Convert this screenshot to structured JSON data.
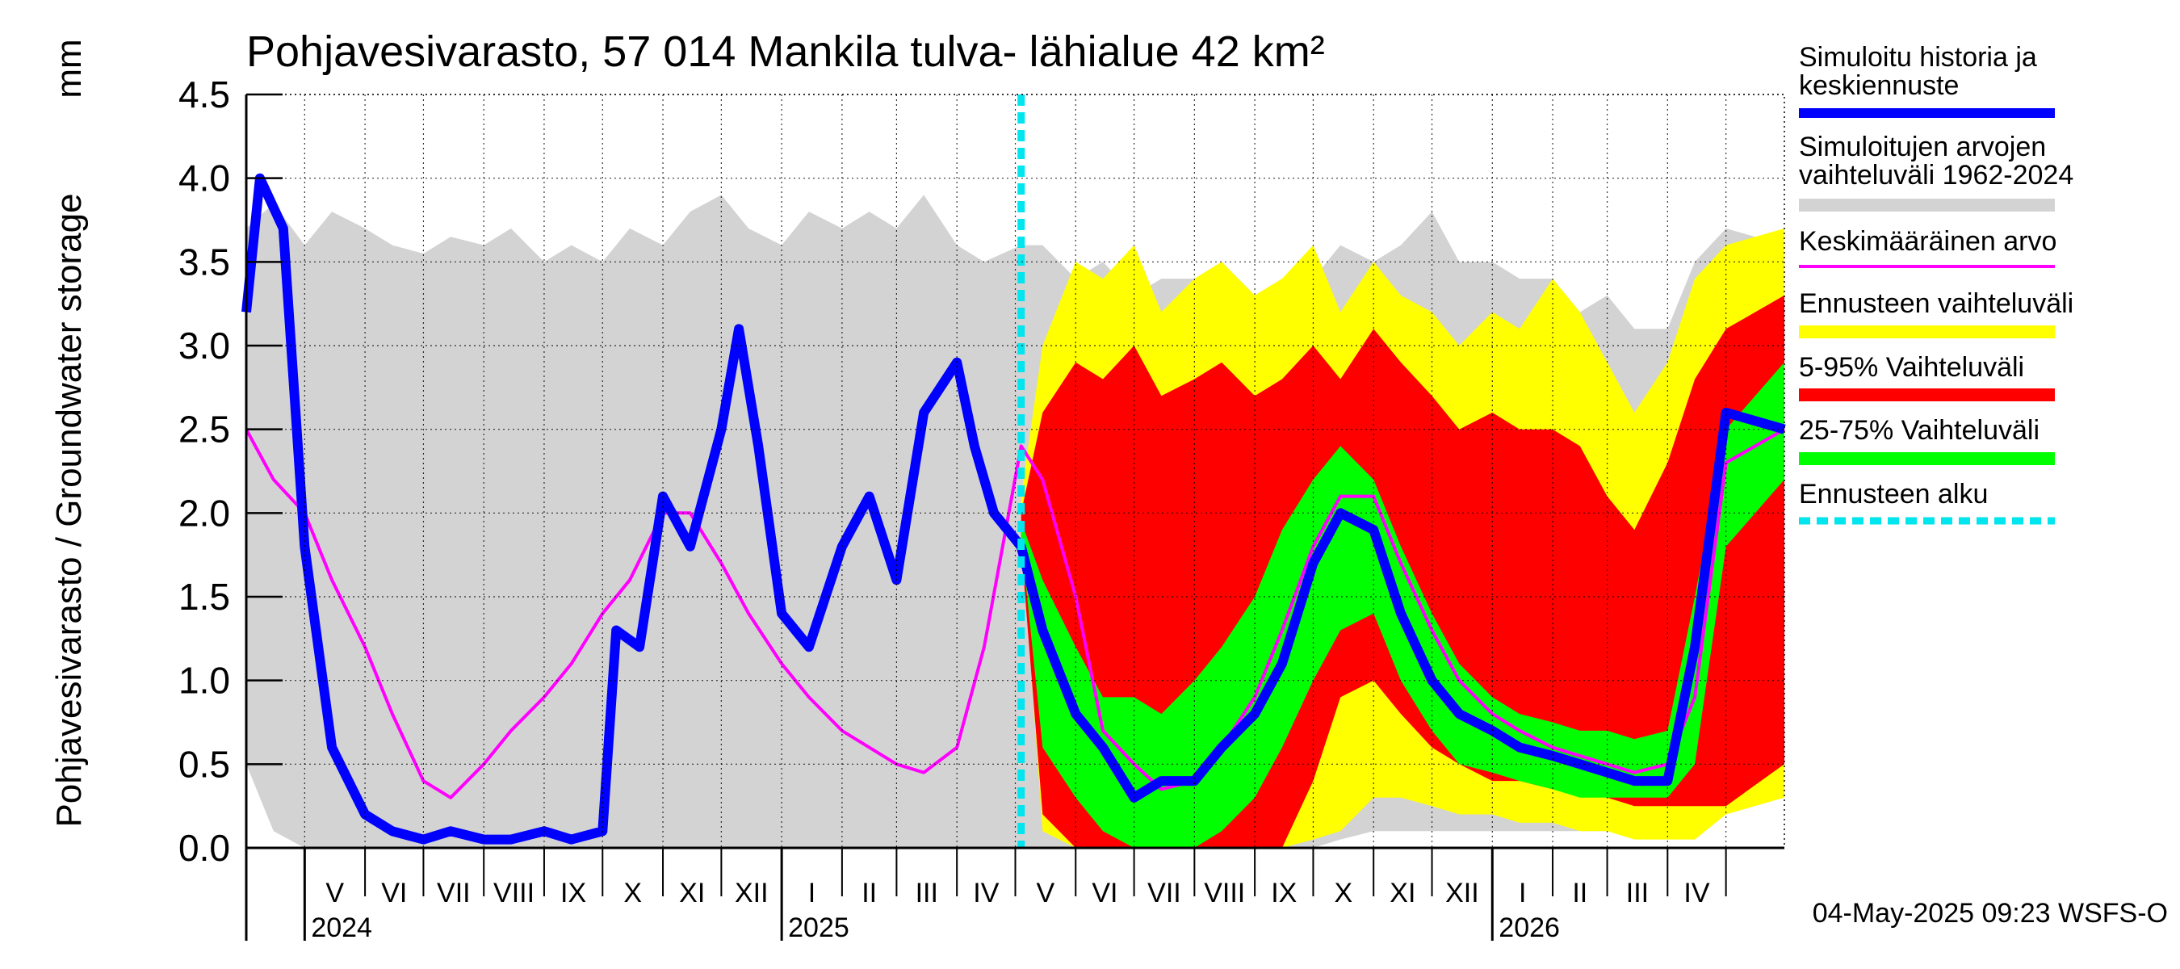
{
  "chart_data": {
    "type": "area",
    "title": "Pohjavesivarasto, 57 014 Mankila tulva- lähialue 42 km²",
    "ylabel": "Pohjavesivarasto / Groundwater storage",
    "yunit": "mm",
    "ylim": [
      0.0,
      4.5
    ],
    "yticks": [
      "0.0",
      "0.5",
      "1.0",
      "1.5",
      "2.0",
      "2.5",
      "3.0",
      "3.5",
      "4.0",
      "4.5"
    ],
    "xlim": [
      "2024-04-01",
      "2026-05-31"
    ],
    "forecast_start": "2025-05-04",
    "grid": true,
    "legend_position": "right",
    "footer": "04-May-2025 09:23 WSFS-O",
    "colors": {
      "history": "#0000ff",
      "range": "#d3d3d3",
      "mean": "#ff00ff",
      "forecast_range": "#ffff00",
      "p5_95": "#ff0000",
      "p25_75": "#00ff00",
      "forecast_start": "#00e5ee"
    },
    "months": [
      {
        "label": "V",
        "start": "2024-05-01"
      },
      {
        "label": "VI",
        "start": "2024-06-01"
      },
      {
        "label": "VII",
        "start": "2024-07-01"
      },
      {
        "label": "VIII",
        "start": "2024-08-01"
      },
      {
        "label": "IX",
        "start": "2024-09-01"
      },
      {
        "label": "X",
        "start": "2024-10-01"
      },
      {
        "label": "XI",
        "start": "2024-11-01"
      },
      {
        "label": "XII",
        "start": "2024-12-01"
      },
      {
        "label": "I",
        "start": "2025-01-01"
      },
      {
        "label": "II",
        "start": "2025-02-01"
      },
      {
        "label": "III",
        "start": "2025-03-01"
      },
      {
        "label": "IV",
        "start": "2025-04-01"
      },
      {
        "label": "V",
        "start": "2025-05-01"
      },
      {
        "label": "VI",
        "start": "2025-06-01"
      },
      {
        "label": "VII",
        "start": "2025-07-01"
      },
      {
        "label": "VIII",
        "start": "2025-08-01"
      },
      {
        "label": "IX",
        "start": "2025-09-01"
      },
      {
        "label": "X",
        "start": "2025-10-01"
      },
      {
        "label": "XI",
        "start": "2025-11-01"
      },
      {
        "label": "XII",
        "start": "2025-12-01"
      },
      {
        "label": "I",
        "start": "2026-01-01"
      },
      {
        "label": "II",
        "start": "2026-02-01"
      },
      {
        "label": "III",
        "start": "2026-03-01"
      },
      {
        "label": "IV",
        "start": "2026-04-01"
      },
      {
        "label": "",
        "start": "2026-05-01"
      }
    ],
    "years": [
      {
        "label": "2024",
        "date": "2024-05-01"
      },
      {
        "label": "2025",
        "date": "2025-01-01"
      },
      {
        "label": "2026",
        "date": "2026-01-01"
      }
    ],
    "legend": [
      {
        "key": "history",
        "lines": [
          "Simuloitu historia ja",
          "keskiennuste"
        ]
      },
      {
        "key": "range",
        "lines": [
          "Simuloitujen arvojen",
          "vaihteluväli 1962-2024"
        ]
      },
      {
        "key": "mean",
        "lines": [
          "Keskimääräinen arvo"
        ]
      },
      {
        "key": "forecast_range",
        "lines": [
          "Ennusteen vaihteluväli"
        ]
      },
      {
        "key": "p5_95",
        "lines": [
          "5-95% Vaihteluväli"
        ]
      },
      {
        "key": "p25_75",
        "lines": [
          "25-75% Vaihteluväli"
        ]
      },
      {
        "key": "forecast_start",
        "lines": [
          "Ennusteen alku"
        ]
      }
    ],
    "series": [
      {
        "name": "Simuloitujen arvojen vaihteluväli 1962-2024",
        "x": [
          "2024-04-01",
          "2024-04-15",
          "2024-05-01",
          "2024-05-15",
          "2024-06-01",
          "2024-06-15",
          "2024-07-01",
          "2024-07-15",
          "2024-08-01",
          "2024-08-15",
          "2024-09-01",
          "2024-09-15",
          "2024-10-01",
          "2024-10-15",
          "2024-11-01",
          "2024-11-15",
          "2024-12-01",
          "2024-12-15",
          "2025-01-01",
          "2025-01-15",
          "2025-02-01",
          "2025-02-15",
          "2025-03-01",
          "2025-03-15",
          "2025-04-01",
          "2025-04-15",
          "2025-05-04",
          "2025-05-15",
          "2025-06-01",
          "2025-06-15",
          "2025-07-01",
          "2025-07-15",
          "2025-08-01",
          "2025-08-15",
          "2025-09-01",
          "2025-09-15",
          "2025-10-01",
          "2025-10-15",
          "2025-11-01",
          "2025-11-15",
          "2025-12-01",
          "2025-12-15",
          "2026-01-01",
          "2026-01-15",
          "2026-02-01",
          "2026-02-15",
          "2026-03-01",
          "2026-03-15",
          "2026-04-01",
          "2026-04-15",
          "2026-05-01",
          "2026-05-31"
        ],
        "upper": [
          3.7,
          3.85,
          3.6,
          3.8,
          3.7,
          3.6,
          3.55,
          3.65,
          3.6,
          3.7,
          3.5,
          3.6,
          3.5,
          3.7,
          3.6,
          3.8,
          3.9,
          3.7,
          3.6,
          3.8,
          3.7,
          3.8,
          3.7,
          3.9,
          3.6,
          3.5,
          3.6,
          3.6,
          3.4,
          3.5,
          3.3,
          3.4,
          3.4,
          3.5,
          3.3,
          3.4,
          3.4,
          3.6,
          3.5,
          3.6,
          3.8,
          3.5,
          3.5,
          3.4,
          3.4,
          3.2,
          3.3,
          3.1,
          3.1,
          3.5,
          3.7,
          3.6
        ],
        "lower": [
          0.5,
          0.1,
          0.0,
          0.0,
          0.0,
          0.0,
          0.0,
          0.0,
          0.0,
          0.0,
          0.0,
          0.0,
          0.0,
          0.0,
          0.0,
          0.0,
          0.0,
          0.0,
          0.0,
          0.0,
          0.0,
          0.0,
          0.0,
          0.0,
          0.0,
          0.0,
          0.0,
          0.0,
          0.0,
          0.0,
          0.0,
          0.0,
          0.0,
          0.0,
          0.0,
          0.0,
          0.0,
          0.05,
          0.1,
          0.1,
          0.1,
          0.1,
          0.1,
          0.1,
          0.1,
          0.1,
          0.1,
          0.15,
          0.2,
          0.25,
          0.3,
          0.5
        ]
      },
      {
        "name": "Ennusteen vaihteluväli",
        "x": [
          "2025-05-04",
          "2025-05-15",
          "2025-06-01",
          "2025-06-15",
          "2025-07-01",
          "2025-07-15",
          "2025-08-01",
          "2025-08-15",
          "2025-09-01",
          "2025-09-15",
          "2025-10-01",
          "2025-10-15",
          "2025-11-01",
          "2025-11-15",
          "2025-12-01",
          "2025-12-15",
          "2026-01-01",
          "2026-01-15",
          "2026-02-01",
          "2026-02-15",
          "2026-03-01",
          "2026-03-15",
          "2026-04-01",
          "2026-04-15",
          "2026-05-01",
          "2026-05-31"
        ],
        "upper": [
          2.1,
          3.0,
          3.5,
          3.4,
          3.6,
          3.2,
          3.4,
          3.5,
          3.3,
          3.4,
          3.6,
          3.2,
          3.5,
          3.3,
          3.2,
          3.0,
          3.2,
          3.1,
          3.4,
          3.2,
          2.9,
          2.6,
          2.9,
          3.4,
          3.6,
          3.7
        ],
        "lower": [
          1.9,
          0.1,
          0.0,
          0.0,
          0.0,
          0.0,
          0.0,
          0.0,
          0.0,
          0.0,
          0.05,
          0.1,
          0.3,
          0.3,
          0.25,
          0.2,
          0.2,
          0.15,
          0.15,
          0.1,
          0.1,
          0.05,
          0.05,
          0.05,
          0.2,
          0.3
        ]
      },
      {
        "name": "5-95% Vaihteluväli",
        "x": [
          "2025-05-04",
          "2025-05-15",
          "2025-06-01",
          "2025-06-15",
          "2025-07-01",
          "2025-07-15",
          "2025-08-01",
          "2025-08-15",
          "2025-09-01",
          "2025-09-15",
          "2025-10-01",
          "2025-10-15",
          "2025-11-01",
          "2025-11-15",
          "2025-12-01",
          "2025-12-15",
          "2026-01-01",
          "2026-01-15",
          "2026-02-01",
          "2026-02-15",
          "2026-03-01",
          "2026-03-15",
          "2026-04-01",
          "2026-04-15",
          "2026-05-01",
          "2026-05-31"
        ],
        "upper": [
          2.0,
          2.6,
          2.9,
          2.8,
          3.0,
          2.7,
          2.8,
          2.9,
          2.7,
          2.8,
          3.0,
          2.8,
          3.1,
          2.9,
          2.7,
          2.5,
          2.6,
          2.5,
          2.5,
          2.4,
          2.1,
          1.9,
          2.3,
          2.8,
          3.1,
          3.3
        ],
        "lower": [
          1.8,
          0.2,
          0.0,
          0.0,
          0.0,
          0.0,
          0.0,
          0.0,
          0.0,
          0.0,
          0.4,
          0.9,
          1.0,
          0.8,
          0.6,
          0.5,
          0.4,
          0.4,
          0.35,
          0.35,
          0.3,
          0.25,
          0.25,
          0.25,
          0.25,
          0.5
        ]
      },
      {
        "name": "25-75% Vaihteluväli",
        "x": [
          "2025-05-04",
          "2025-05-15",
          "2025-06-01",
          "2025-06-15",
          "2025-07-01",
          "2025-07-15",
          "2025-08-01",
          "2025-08-15",
          "2025-09-01",
          "2025-09-15",
          "2025-10-01",
          "2025-10-15",
          "2025-11-01",
          "2025-11-15",
          "2025-12-01",
          "2025-12-15",
          "2026-01-01",
          "2026-01-15",
          "2026-02-01",
          "2026-02-15",
          "2026-03-01",
          "2026-03-15",
          "2026-04-01",
          "2026-04-15",
          "2026-05-01",
          "2026-05-31"
        ],
        "upper": [
          1.95,
          1.6,
          1.2,
          0.9,
          0.9,
          0.8,
          1.0,
          1.2,
          1.5,
          1.9,
          2.2,
          2.4,
          2.2,
          1.8,
          1.4,
          1.1,
          0.9,
          0.8,
          0.75,
          0.7,
          0.7,
          0.65,
          0.7,
          1.5,
          2.5,
          2.9
        ],
        "lower": [
          1.85,
          0.6,
          0.3,
          0.1,
          0.0,
          0.0,
          0.0,
          0.1,
          0.3,
          0.6,
          1.0,
          1.3,
          1.4,
          1.0,
          0.7,
          0.5,
          0.45,
          0.4,
          0.35,
          0.3,
          0.3,
          0.3,
          0.3,
          0.5,
          1.8,
          2.2
        ]
      },
      {
        "name": "Keskimääräinen arvo",
        "x": [
          "2024-04-01",
          "2024-04-15",
          "2024-05-01",
          "2024-05-15",
          "2024-06-01",
          "2024-06-15",
          "2024-07-01",
          "2024-07-15",
          "2024-08-01",
          "2024-08-15",
          "2024-09-01",
          "2024-09-15",
          "2024-10-01",
          "2024-10-15",
          "2024-11-01",
          "2024-11-15",
          "2024-12-01",
          "2024-12-15",
          "2025-01-01",
          "2025-01-15",
          "2025-02-01",
          "2025-02-15",
          "2025-03-01",
          "2025-03-15",
          "2025-04-01",
          "2025-04-15",
          "2025-05-04",
          "2025-05-15",
          "2025-06-01",
          "2025-06-15",
          "2025-07-01",
          "2025-07-15",
          "2025-08-01",
          "2025-08-15",
          "2025-09-01",
          "2025-09-15",
          "2025-10-01",
          "2025-10-15",
          "2025-11-01",
          "2025-11-15",
          "2025-12-01",
          "2025-12-15",
          "2026-01-01",
          "2026-01-15",
          "2026-02-01",
          "2026-02-15",
          "2026-03-01",
          "2026-03-15",
          "2026-04-01",
          "2026-04-15",
          "2026-05-01",
          "2026-05-31"
        ],
        "values": [
          2.5,
          2.2,
          2.0,
          1.6,
          1.2,
          0.8,
          0.4,
          0.3,
          0.5,
          0.7,
          0.9,
          1.1,
          1.4,
          1.6,
          2.0,
          2.0,
          1.7,
          1.4,
          1.1,
          0.9,
          0.7,
          0.6,
          0.5,
          0.45,
          0.6,
          1.2,
          2.4,
          2.2,
          1.5,
          0.7,
          0.5,
          0.35,
          0.4,
          0.6,
          0.9,
          1.3,
          1.8,
          2.1,
          2.1,
          1.7,
          1.3,
          1.0,
          0.8,
          0.7,
          0.6,
          0.55,
          0.5,
          0.45,
          0.5,
          0.9,
          2.3,
          2.5
        ]
      },
      {
        "name": "Simuloitu historia ja keskiennuste",
        "x": [
          "2024-04-01",
          "2024-04-08",
          "2024-04-20",
          "2024-05-01",
          "2024-05-15",
          "2024-06-01",
          "2024-06-15",
          "2024-07-01",
          "2024-07-15",
          "2024-08-01",
          "2024-08-15",
          "2024-09-01",
          "2024-09-15",
          "2024-10-01",
          "2024-10-08",
          "2024-10-20",
          "2024-11-01",
          "2024-11-15",
          "2024-12-01",
          "2024-12-10",
          "2024-12-20",
          "2025-01-01",
          "2025-01-15",
          "2025-02-01",
          "2025-02-15",
          "2025-03-01",
          "2025-03-15",
          "2025-04-01",
          "2025-04-10",
          "2025-04-20",
          "2025-05-04",
          "2025-05-15",
          "2025-06-01",
          "2025-06-15",
          "2025-07-01",
          "2025-07-15",
          "2025-08-01",
          "2025-08-15",
          "2025-09-01",
          "2025-09-15",
          "2025-10-01",
          "2025-10-15",
          "2025-11-01",
          "2025-11-15",
          "2025-12-01",
          "2025-12-15",
          "2026-01-01",
          "2026-01-15",
          "2026-02-01",
          "2026-02-15",
          "2026-03-01",
          "2026-03-15",
          "2026-04-01",
          "2026-04-15",
          "2026-05-01",
          "2026-05-31"
        ],
        "values": [
          3.2,
          4.0,
          3.7,
          1.8,
          0.6,
          0.2,
          0.1,
          0.05,
          0.1,
          0.05,
          0.05,
          0.1,
          0.05,
          0.1,
          1.3,
          1.2,
          2.1,
          1.8,
          2.5,
          3.1,
          2.4,
          1.4,
          1.2,
          1.8,
          2.1,
          1.6,
          2.6,
          2.9,
          2.4,
          2.0,
          1.8,
          1.3,
          0.8,
          0.6,
          0.3,
          0.4,
          0.4,
          0.6,
          0.8,
          1.1,
          1.7,
          2.0,
          1.9,
          1.4,
          1.0,
          0.8,
          0.7,
          0.6,
          0.55,
          0.5,
          0.45,
          0.4,
          0.4,
          1.2,
          2.6,
          2.5
        ]
      }
    ]
  }
}
